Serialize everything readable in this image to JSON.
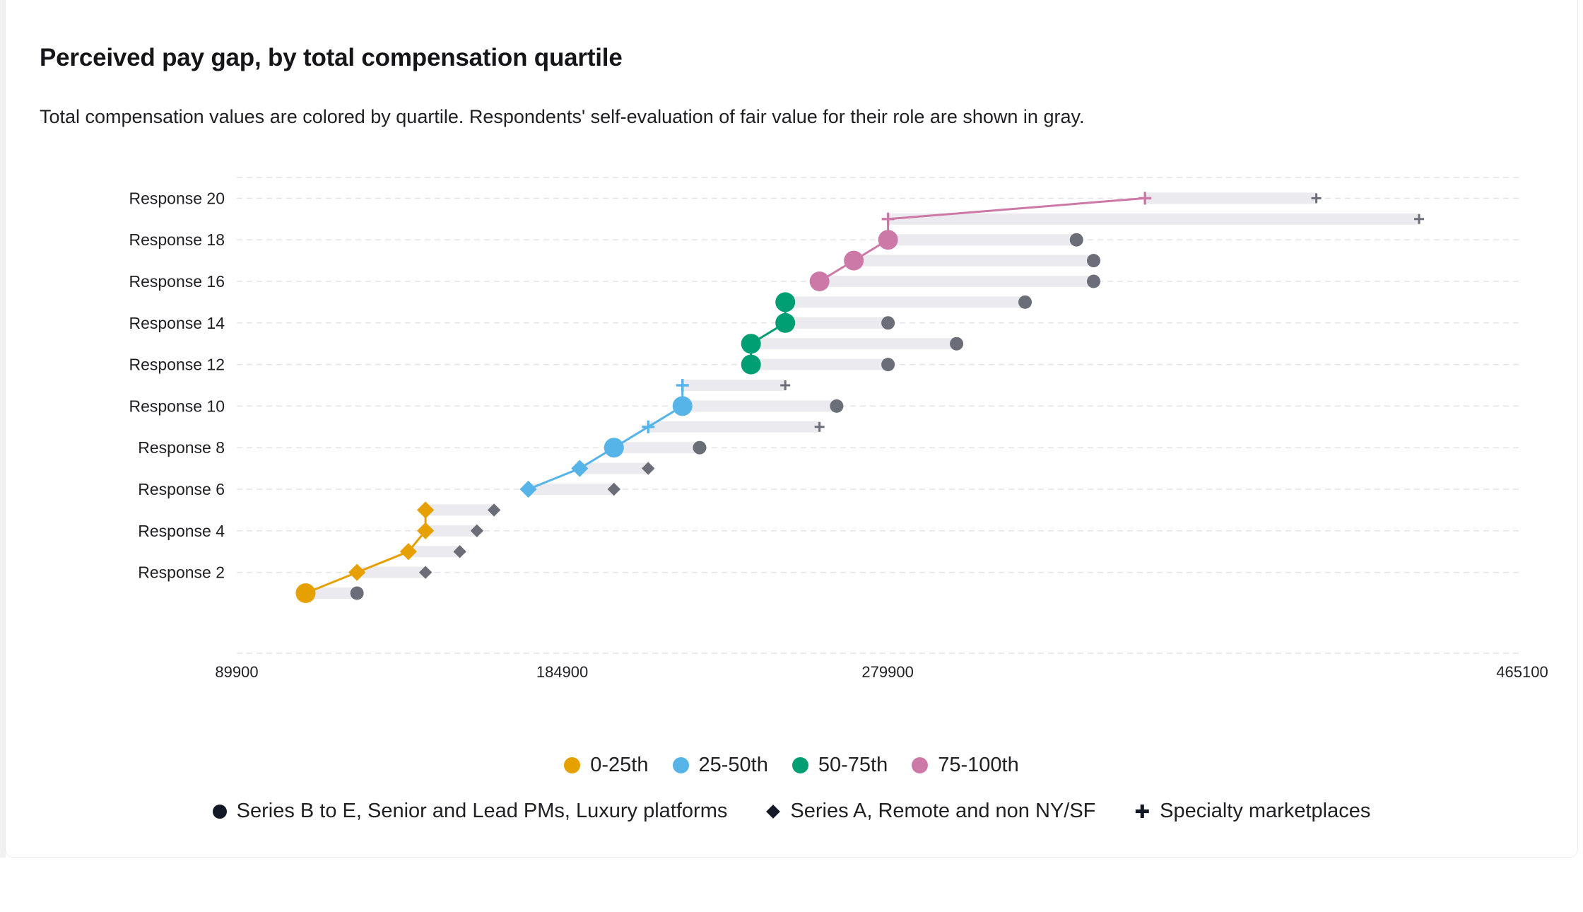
{
  "header": {
    "title": "Perceived pay gap, by total compensation quartile",
    "subtitle": "Total compensation values are colored by quartile. Respondents' self-evaluation of fair value for their role are shown in gray."
  },
  "colors": {
    "q1": "#e6a000",
    "q2": "#56b4e9",
    "q3": "#009e73",
    "q4": "#cc79a7",
    "fair_value_marker": "#6b6e78",
    "range_bar": "#ebebef",
    "legend_marker": "#121826"
  },
  "legend": {
    "quartiles": [
      {
        "key": "q1",
        "label": "0-25th"
      },
      {
        "key": "q2",
        "label": "25-50th"
      },
      {
        "key": "q3",
        "label": "50-75th"
      },
      {
        "key": "q4",
        "label": "75-100th"
      }
    ],
    "segments": [
      {
        "shape": "circle",
        "label": "Series B to E, Senior and Lead PMs, Luxury platforms"
      },
      {
        "shape": "diamond",
        "label": "Series A, Remote and non NY/SF"
      },
      {
        "shape": "plus",
        "label": "Specialty marketplaces"
      }
    ]
  },
  "chart_data": {
    "type": "dumbbell",
    "title": "Perceived pay gap, by total compensation quartile",
    "xlabel": "",
    "ylabel": "",
    "xlim": [
      89900,
      465100
    ],
    "x_ticks": [
      89900,
      184900,
      279900,
      465100
    ],
    "y_tick_labels": [
      "Response 2",
      "Response 4",
      "Response 6",
      "Response 8",
      "Response 10",
      "Response 12",
      "Response 14",
      "Response 16",
      "Response 18",
      "Response 20"
    ],
    "grid": "horizontal dashed",
    "legend_position": "bottom",
    "responses": [
      {
        "response": 1,
        "total_comp": 110000,
        "fair_value": 125000,
        "quartile": "q1",
        "shape": "circle"
      },
      {
        "response": 2,
        "total_comp": 125000,
        "fair_value": 145000,
        "quartile": "q1",
        "shape": "diamond"
      },
      {
        "response": 3,
        "total_comp": 140000,
        "fair_value": 155000,
        "quartile": "q1",
        "shape": "diamond"
      },
      {
        "response": 4,
        "total_comp": 145000,
        "fair_value": 160000,
        "quartile": "q1",
        "shape": "diamond"
      },
      {
        "response": 5,
        "total_comp": 145000,
        "fair_value": 165000,
        "quartile": "q1",
        "shape": "diamond"
      },
      {
        "response": 6,
        "total_comp": 175000,
        "fair_value": 200000,
        "quartile": "q2",
        "shape": "diamond"
      },
      {
        "response": 7,
        "total_comp": 190000,
        "fair_value": 210000,
        "quartile": "q2",
        "shape": "diamond"
      },
      {
        "response": 8,
        "total_comp": 200000,
        "fair_value": 225000,
        "quartile": "q2",
        "shape": "circle"
      },
      {
        "response": 9,
        "total_comp": 210000,
        "fair_value": 260000,
        "quartile": "q2",
        "shape": "plus"
      },
      {
        "response": 10,
        "total_comp": 220000,
        "fair_value": 265000,
        "quartile": "q2",
        "shape": "circle"
      },
      {
        "response": 11,
        "total_comp": 220000,
        "fair_value": 250000,
        "quartile": "q2",
        "shape": "plus"
      },
      {
        "response": 12,
        "total_comp": 240000,
        "fair_value": 280000,
        "quartile": "q3",
        "shape": "circle"
      },
      {
        "response": 13,
        "total_comp": 240000,
        "fair_value": 300000,
        "quartile": "q3",
        "shape": "circle"
      },
      {
        "response": 14,
        "total_comp": 250000,
        "fair_value": 280000,
        "quartile": "q3",
        "shape": "circle"
      },
      {
        "response": 15,
        "total_comp": 250000,
        "fair_value": 320000,
        "quartile": "q3",
        "shape": "circle"
      },
      {
        "response": 16,
        "total_comp": 260000,
        "fair_value": 340000,
        "quartile": "q4",
        "shape": "circle"
      },
      {
        "response": 17,
        "total_comp": 270000,
        "fair_value": 340000,
        "quartile": "q4",
        "shape": "circle"
      },
      {
        "response": 18,
        "total_comp": 280000,
        "fair_value": 335000,
        "quartile": "q4",
        "shape": "circle"
      },
      {
        "response": 19,
        "total_comp": 280000,
        "fair_value": 435000,
        "quartile": "q4",
        "shape": "plus"
      },
      {
        "response": 20,
        "total_comp": 355000,
        "fair_value": 405000,
        "quartile": "q4",
        "shape": "plus"
      }
    ]
  }
}
